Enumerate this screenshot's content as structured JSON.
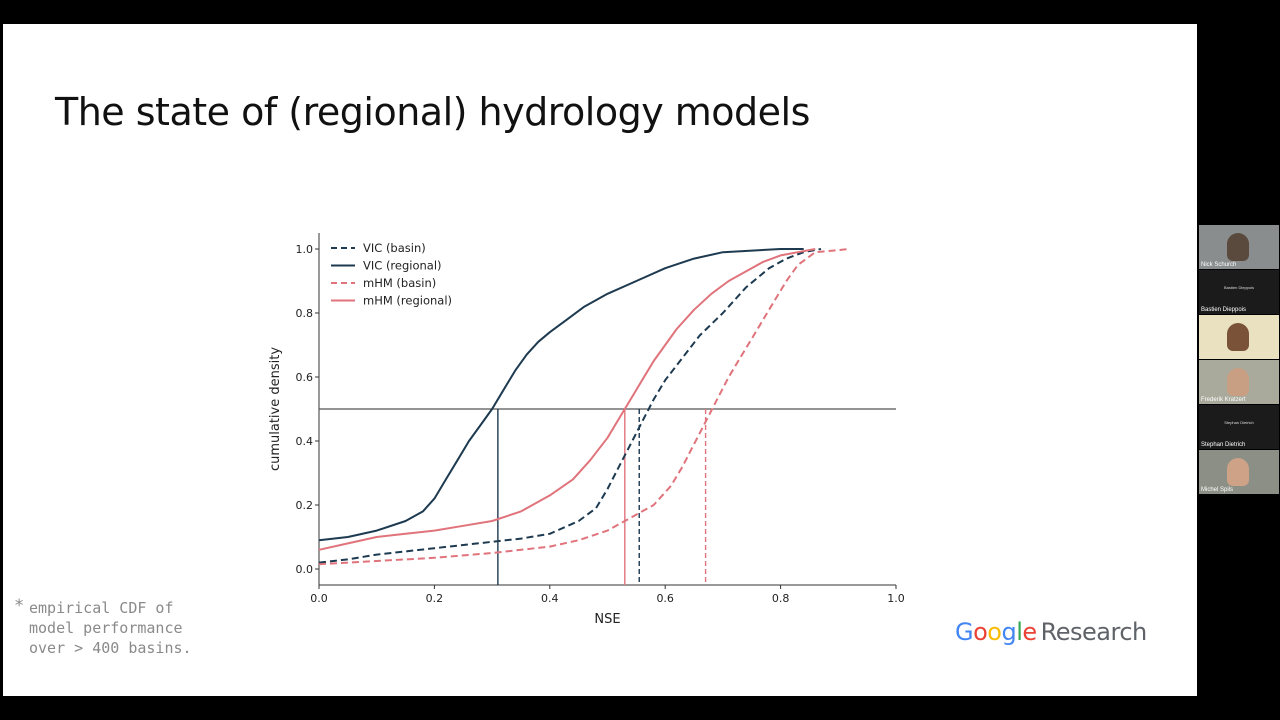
{
  "slide": {
    "title": "The state of (regional) hydrology models",
    "footnote_marker": "*",
    "footnote_lines": [
      "empirical CDF of",
      "model performance",
      "over > 400 basins."
    ],
    "logo": {
      "google": "Google",
      "research": "Research"
    }
  },
  "chart_data": {
    "type": "line",
    "title": "",
    "xlabel": "NSE",
    "ylabel": "cumulative density",
    "xlim": [
      0.0,
      1.0
    ],
    "ylim": [
      -0.05,
      1.05
    ],
    "xticks": [
      "0.0",
      "0.2",
      "0.4",
      "0.6",
      "0.8",
      "1.0"
    ],
    "yticks": [
      "0.0",
      "0.2",
      "0.4",
      "0.6",
      "0.8",
      "1.0"
    ],
    "legend_position": "top-left",
    "grid": false,
    "hline": {
      "y": 0.5,
      "color": "#555555"
    },
    "medians": [
      {
        "series": "VIC (regional)",
        "x": 0.31,
        "style": "solid",
        "color": "#1d3a50"
      },
      {
        "series": "mHM (regional)",
        "x": 0.53,
        "style": "solid",
        "color": "#e0737b"
      },
      {
        "series": "VIC (basin)",
        "x": 0.555,
        "style": "dashed",
        "color": "#1d3a50"
      },
      {
        "series": "mHM (basin)",
        "x": 0.67,
        "style": "dashed",
        "color": "#e0737b"
      }
    ],
    "series": [
      {
        "name": "VIC (basin)",
        "style": "dashed",
        "color": "#1d3a50",
        "x": [
          0.0,
          0.05,
          0.1,
          0.15,
          0.2,
          0.25,
          0.3,
          0.35,
          0.4,
          0.45,
          0.48,
          0.5,
          0.52,
          0.54,
          0.56,
          0.58,
          0.6,
          0.63,
          0.66,
          0.7,
          0.74,
          0.78,
          0.81,
          0.84,
          0.87
        ],
        "y": [
          0.02,
          0.03,
          0.045,
          0.055,
          0.065,
          0.075,
          0.085,
          0.095,
          0.11,
          0.15,
          0.19,
          0.25,
          0.32,
          0.39,
          0.46,
          0.53,
          0.59,
          0.66,
          0.73,
          0.8,
          0.88,
          0.94,
          0.97,
          0.99,
          1.0
        ]
      },
      {
        "name": "VIC (regional)",
        "style": "solid",
        "color": "#1d3a50",
        "x": [
          0.0,
          0.05,
          0.1,
          0.15,
          0.18,
          0.2,
          0.22,
          0.24,
          0.26,
          0.28,
          0.3,
          0.32,
          0.34,
          0.36,
          0.38,
          0.4,
          0.43,
          0.46,
          0.5,
          0.55,
          0.6,
          0.65,
          0.7,
          0.75,
          0.8,
          0.84
        ],
        "y": [
          0.09,
          0.1,
          0.12,
          0.15,
          0.18,
          0.22,
          0.28,
          0.34,
          0.4,
          0.45,
          0.5,
          0.56,
          0.62,
          0.67,
          0.71,
          0.74,
          0.78,
          0.82,
          0.86,
          0.9,
          0.94,
          0.97,
          0.99,
          0.995,
          1.0,
          1.0
        ]
      },
      {
        "name": "mHM (basin)",
        "style": "dashed",
        "color": "#e0737b",
        "x": [
          0.0,
          0.1,
          0.2,
          0.3,
          0.4,
          0.45,
          0.5,
          0.54,
          0.58,
          0.61,
          0.63,
          0.65,
          0.67,
          0.69,
          0.71,
          0.73,
          0.75,
          0.77,
          0.79,
          0.81,
          0.83,
          0.86,
          0.92
        ],
        "y": [
          0.015,
          0.025,
          0.035,
          0.05,
          0.07,
          0.09,
          0.12,
          0.16,
          0.2,
          0.26,
          0.32,
          0.39,
          0.46,
          0.53,
          0.6,
          0.66,
          0.72,
          0.78,
          0.84,
          0.9,
          0.95,
          0.99,
          1.0
        ]
      },
      {
        "name": "mHM (regional)",
        "style": "solid",
        "color": "#e0737b",
        "x": [
          0.0,
          0.05,
          0.1,
          0.15,
          0.2,
          0.25,
          0.3,
          0.35,
          0.4,
          0.44,
          0.47,
          0.5,
          0.52,
          0.54,
          0.56,
          0.58,
          0.6,
          0.62,
          0.65,
          0.68,
          0.71,
          0.74,
          0.77,
          0.8,
          0.83,
          0.86
        ],
        "y": [
          0.06,
          0.08,
          0.1,
          0.11,
          0.12,
          0.135,
          0.15,
          0.18,
          0.23,
          0.28,
          0.34,
          0.41,
          0.47,
          0.53,
          0.59,
          0.65,
          0.7,
          0.75,
          0.81,
          0.86,
          0.9,
          0.93,
          0.96,
          0.98,
          0.99,
          1.0
        ]
      }
    ]
  },
  "participants": [
    {
      "name": "Nick Schurch",
      "video": true,
      "bg": "#8a8d8e",
      "skin": "#5a4a3e"
    },
    {
      "name": "Bastien Dieppois",
      "video": false
    },
    {
      "name": "",
      "video": true,
      "bg": "#e9e1c0",
      "skin": "#7a5238"
    },
    {
      "name": "Frederik Kratzert",
      "video": true,
      "bg": "#a9aa9c",
      "skin": "#c99f84"
    },
    {
      "name": "Stephan Dietrich",
      "video": false
    },
    {
      "name": "Michel Spils",
      "video": true,
      "bg": "#8c8f86",
      "skin": "#cda286"
    }
  ]
}
